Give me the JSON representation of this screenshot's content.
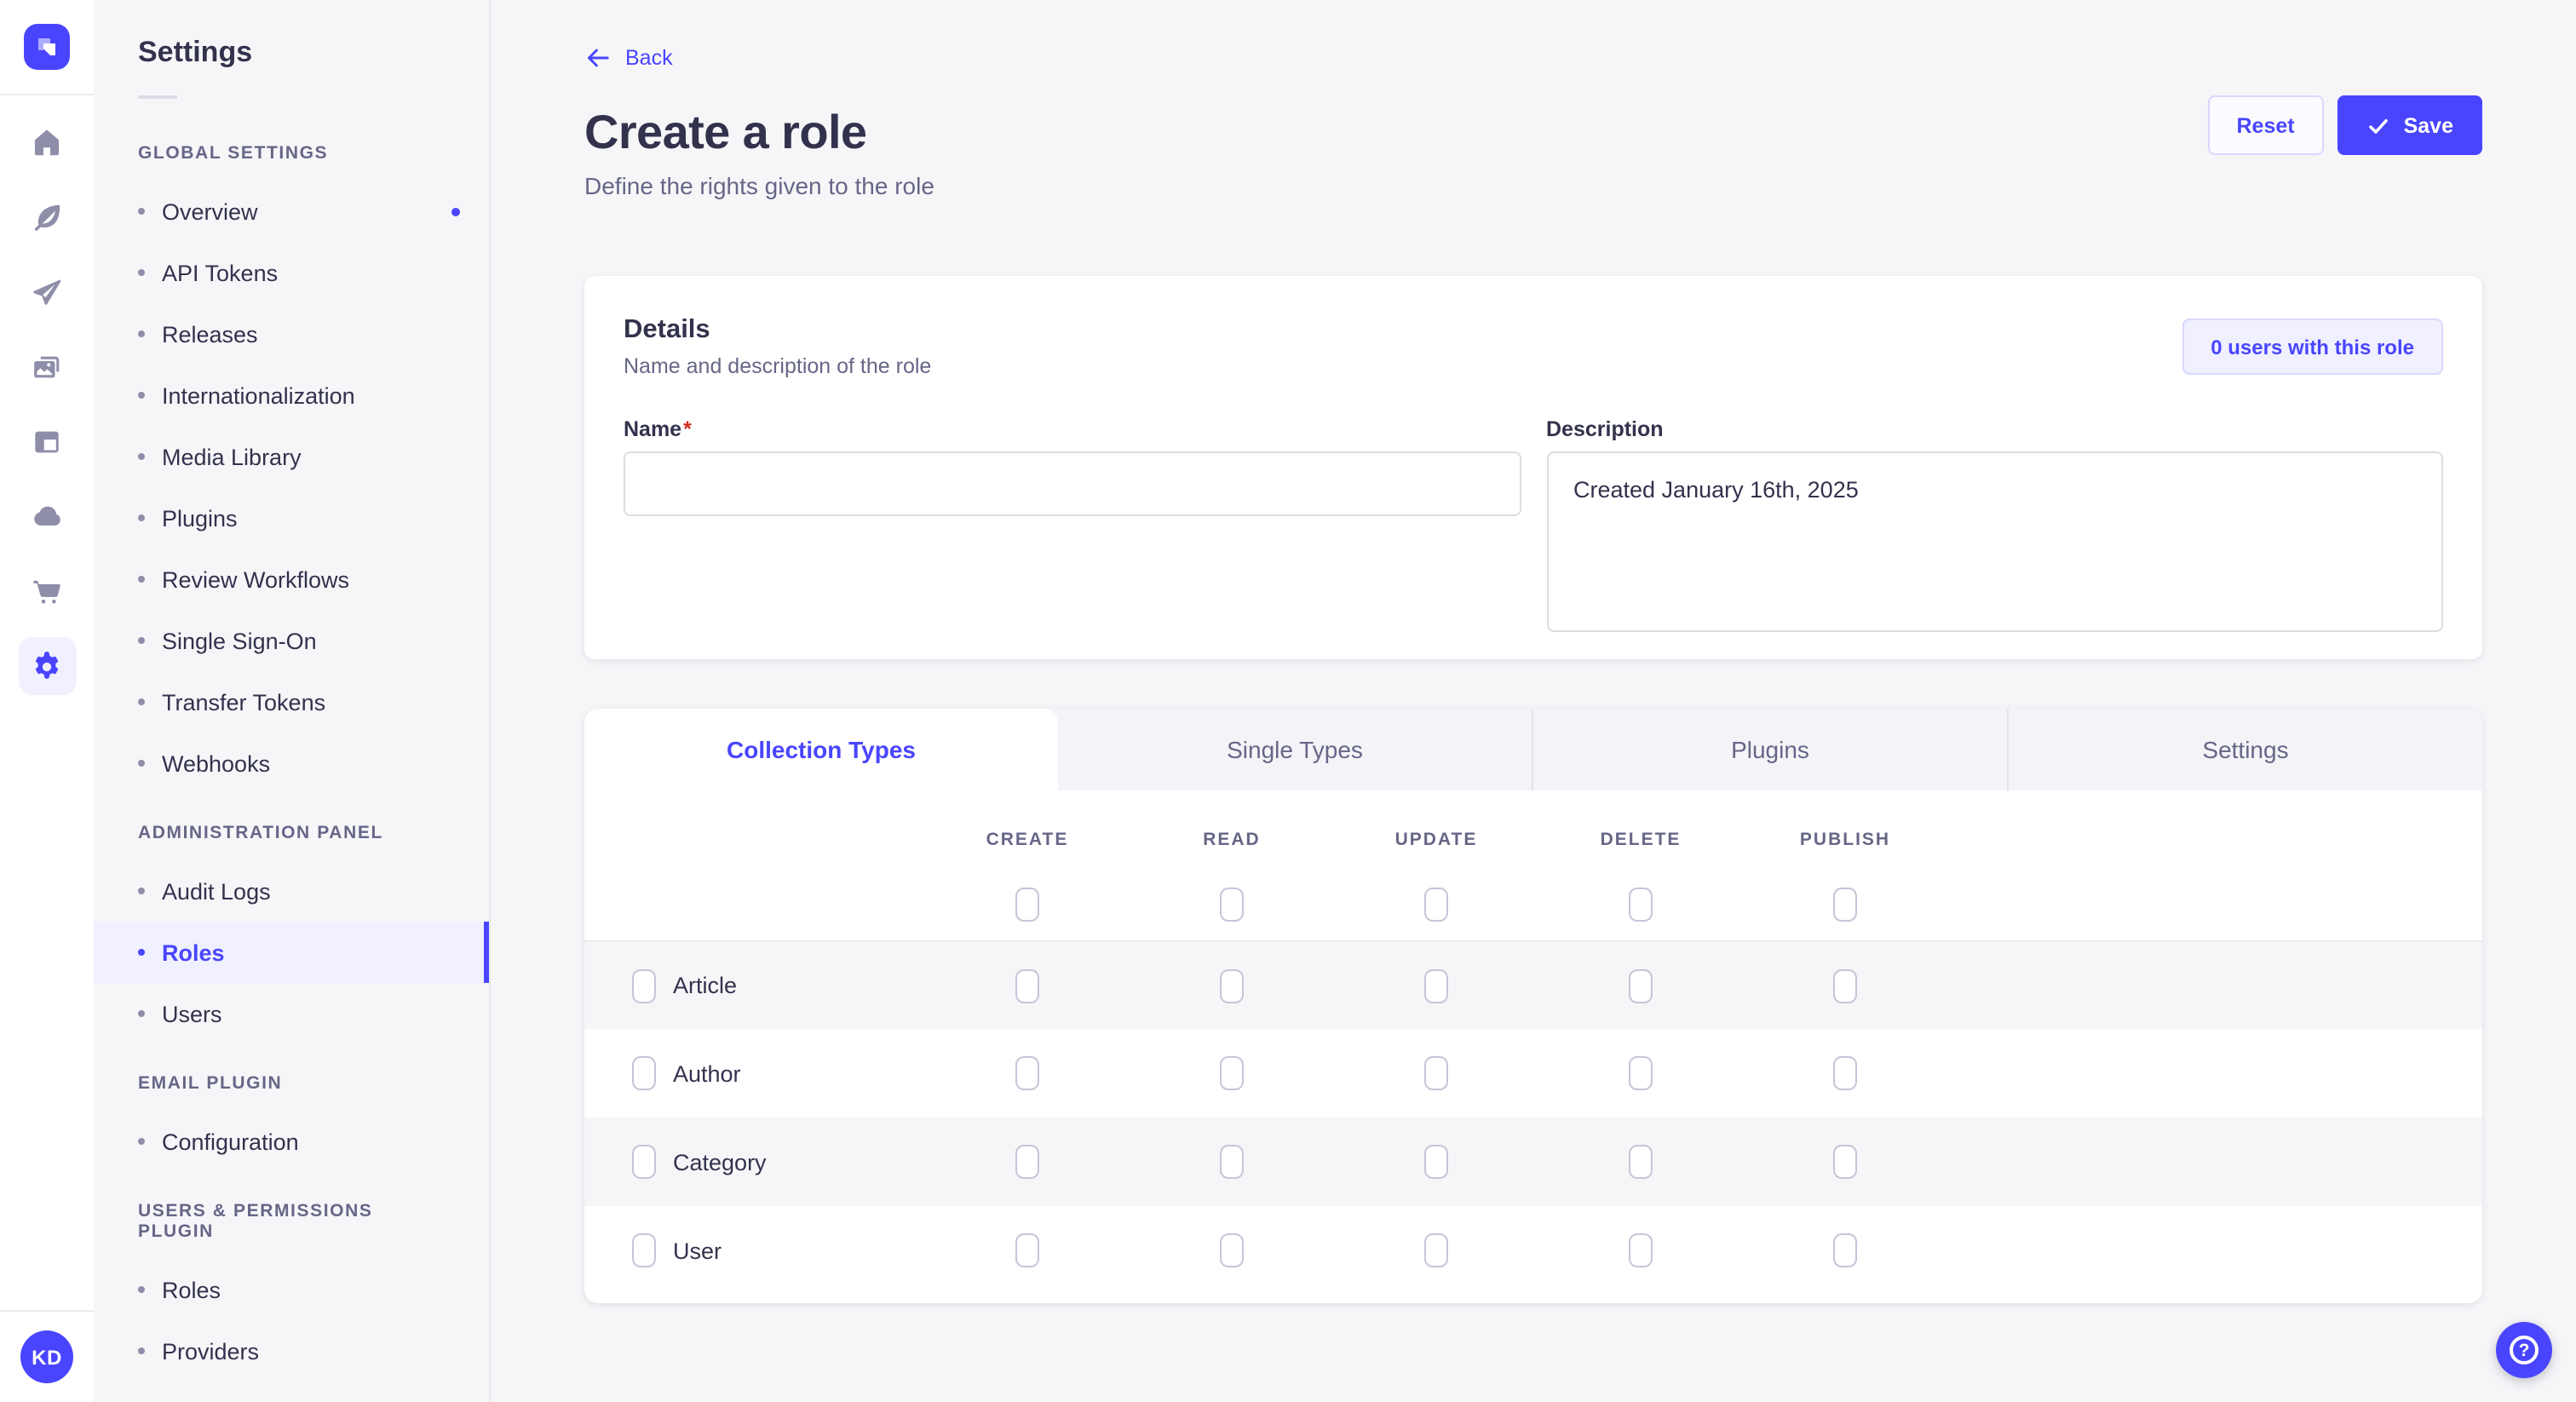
{
  "brand": {
    "avatar_initials": "KD"
  },
  "rail": {
    "items": [
      {
        "icon": "home",
        "active": false
      },
      {
        "icon": "content-builder",
        "active": false
      },
      {
        "icon": "deploy",
        "active": false
      },
      {
        "icon": "media-library",
        "active": false
      },
      {
        "icon": "content-manager",
        "active": false
      },
      {
        "icon": "cloud",
        "active": false
      },
      {
        "icon": "marketplace",
        "active": false
      },
      {
        "icon": "settings",
        "active": true
      }
    ]
  },
  "settings_nav": {
    "title": "Settings",
    "sections": [
      {
        "header": "GLOBAL SETTINGS",
        "items": [
          {
            "label": "Overview",
            "notification": true
          },
          {
            "label": "API Tokens"
          },
          {
            "label": "Releases"
          },
          {
            "label": "Internationalization"
          },
          {
            "label": "Media Library"
          },
          {
            "label": "Plugins"
          },
          {
            "label": "Review Workflows"
          },
          {
            "label": "Single Sign-On"
          },
          {
            "label": "Transfer Tokens"
          },
          {
            "label": "Webhooks"
          }
        ]
      },
      {
        "header": "ADMINISTRATION PANEL",
        "items": [
          {
            "label": "Audit Logs"
          },
          {
            "label": "Roles",
            "active": true
          },
          {
            "label": "Users"
          }
        ]
      },
      {
        "header": "EMAIL PLUGIN",
        "items": [
          {
            "label": "Configuration"
          }
        ]
      },
      {
        "header": "USERS & PERMISSIONS PLUGIN",
        "items": [
          {
            "label": "Roles"
          },
          {
            "label": "Providers"
          }
        ]
      }
    ]
  },
  "page": {
    "back_label": "Back",
    "title": "Create a role",
    "subtitle": "Define the rights given to the role",
    "reset_label": "Reset",
    "save_label": "Save"
  },
  "details": {
    "title": "Details",
    "subtitle": "Name and description of the role",
    "users_badge": "0 users with this role",
    "name": {
      "label": "Name",
      "required_mark": "*",
      "value": ""
    },
    "description": {
      "label": "Description",
      "value": "Created January 16th, 2025"
    }
  },
  "permissions": {
    "tabs": [
      {
        "label": "Collection Types",
        "active": true
      },
      {
        "label": "Single Types",
        "active": false
      },
      {
        "label": "Plugins",
        "active": false
      },
      {
        "label": "Settings",
        "active": false
      }
    ],
    "columns": [
      "CREATE",
      "READ",
      "UPDATE",
      "DELETE",
      "PUBLISH"
    ],
    "select_all": [
      false,
      false,
      false,
      false,
      false
    ],
    "rows": [
      {
        "label": "Article",
        "row_checked": false,
        "permissions": [
          false,
          false,
          false,
          false,
          false
        ]
      },
      {
        "label": "Author",
        "row_checked": false,
        "permissions": [
          false,
          false,
          false,
          false,
          false
        ]
      },
      {
        "label": "Category",
        "row_checked": false,
        "permissions": [
          false,
          false,
          false,
          false,
          false
        ]
      },
      {
        "label": "User",
        "row_checked": false,
        "permissions": [
          false,
          false,
          false,
          false,
          false
        ]
      }
    ]
  },
  "colors": {
    "accent": "#4945ff",
    "accent_light": "#f0f0ff",
    "accent_border": "#d9d8ff",
    "text_dark": "#32324d",
    "text_muted": "#666687",
    "input_border": "#dcdce4",
    "divider": "#eaeaef",
    "page_bg": "#f6f6f9",
    "stripe": "#f6f6f9",
    "required": "#d02b20",
    "icon_gray": "#8e8ea9"
  }
}
